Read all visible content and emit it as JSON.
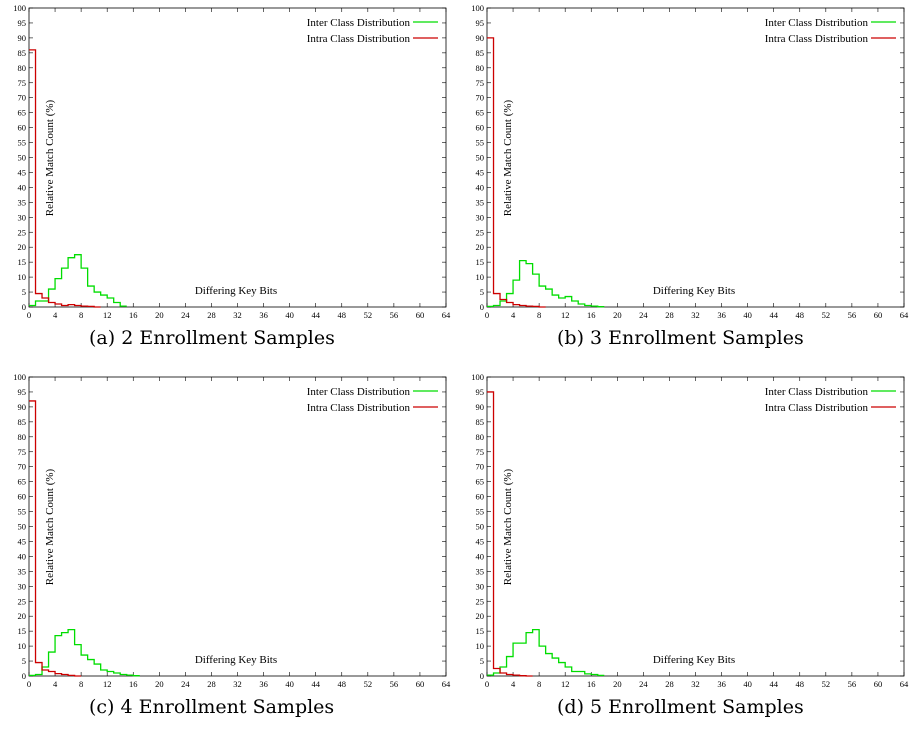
{
  "chart_data": [
    {
      "type": "line",
      "caption": "(a) 2 Enrollment Samples",
      "xlabel": "Differing Key Bits",
      "ylabel": "Relative Match Count (%)",
      "xlim": [
        0,
        64
      ],
      "ylim": [
        0,
        100
      ],
      "xticks": [
        0,
        4,
        8,
        12,
        16,
        20,
        24,
        28,
        32,
        36,
        40,
        44,
        48,
        52,
        56,
        60,
        64
      ],
      "yticks": [
        0,
        5,
        10,
        15,
        20,
        25,
        30,
        35,
        40,
        45,
        50,
        55,
        60,
        65,
        70,
        75,
        80,
        85,
        90,
        95,
        100
      ],
      "legend_position": "top-right",
      "series": [
        {
          "name": "Inter Class Distribution",
          "color": "#00dd00",
          "x": [
            0,
            1,
            2,
            3,
            4,
            5,
            6,
            7,
            8,
            9,
            10,
            11,
            12,
            13,
            14
          ],
          "values": [
            0.5,
            2,
            2,
            6,
            9.5,
            13,
            16.5,
            17.5,
            13,
            7,
            5,
            4,
            3,
            1.5,
            0.3
          ]
        },
        {
          "name": "Intra Class Distribution",
          "color": "#cc0000",
          "x": [
            0,
            1,
            2,
            3,
            4,
            5,
            6,
            7,
            8,
            9,
            10
          ],
          "values": [
            86,
            4.5,
            3,
            1.5,
            1,
            0.5,
            0.8,
            0.5,
            0.3,
            0.2,
            0
          ]
        }
      ]
    },
    {
      "type": "line",
      "caption": "(b) 3 Enrollment Samples",
      "xlabel": "Differing Key Bits",
      "ylabel": "Relative Match Count (%)",
      "xlim": [
        0,
        64
      ],
      "ylim": [
        0,
        100
      ],
      "xticks": [
        0,
        4,
        8,
        12,
        16,
        20,
        24,
        28,
        32,
        36,
        40,
        44,
        48,
        52,
        56,
        60,
        "64"
      ],
      "yticks": [
        0,
        5,
        10,
        15,
        20,
        25,
        30,
        35,
        40,
        45,
        50,
        55,
        60,
        65,
        70,
        75,
        80,
        85,
        90,
        95,
        100
      ],
      "legend_position": "top-right",
      "series": [
        {
          "name": "Inter Class Distribution",
          "color": "#00dd00",
          "x": [
            0,
            1,
            2,
            3,
            4,
            5,
            6,
            7,
            8,
            9,
            10,
            11,
            12,
            13,
            14,
            15,
            16,
            17
          ],
          "values": [
            0.2,
            0.5,
            2,
            4.5,
            9,
            15.5,
            14.5,
            11,
            7,
            6,
            4,
            3,
            3.5,
            2,
            1,
            0.5,
            0.3,
            0.1
          ]
        },
        {
          "name": "Intra Class Distribution",
          "color": "#cc0000",
          "x": [
            0,
            1,
            2,
            3,
            4,
            5,
            6,
            7,
            8
          ],
          "values": [
            90,
            4.5,
            2.5,
            1.5,
            0.8,
            0.5,
            0.3,
            0.2,
            0
          ]
        }
      ]
    },
    {
      "type": "line",
      "caption": "(c) 4 Enrollment Samples",
      "xlabel": "Differing Key Bits",
      "ylabel": "Relative Match Count (%)",
      "xlim": [
        0,
        64
      ],
      "ylim": [
        0,
        100
      ],
      "xticks": [
        0,
        4,
        8,
        12,
        16,
        20,
        24,
        28,
        32,
        36,
        40,
        44,
        48,
        52,
        56,
        60,
        64
      ],
      "yticks": [
        0,
        5,
        10,
        15,
        20,
        25,
        30,
        35,
        40,
        45,
        50,
        55,
        60,
        65,
        70,
        75,
        80,
        85,
        90,
        95,
        100
      ],
      "legend_position": "top-right",
      "series": [
        {
          "name": "Inter Class Distribution",
          "color": "#00dd00",
          "x": [
            0,
            1,
            2,
            3,
            4,
            5,
            6,
            7,
            8,
            9,
            10,
            11,
            12,
            13,
            14,
            15,
            16
          ],
          "values": [
            0.2,
            0.5,
            3,
            8,
            13.5,
            14.5,
            15.5,
            10.5,
            7,
            5.5,
            4,
            2,
            1.5,
            1,
            0.5,
            0.3,
            0.1
          ]
        },
        {
          "name": "Intra Class Distribution",
          "color": "#cc0000",
          "x": [
            0,
            1,
            2,
            3,
            4,
            5,
            6,
            7
          ],
          "values": [
            92,
            4.5,
            2,
            1.5,
            0.8,
            0.5,
            0.2,
            0
          ]
        }
      ]
    },
    {
      "type": "line",
      "caption": "(d) 5 Enrollment Samples",
      "xlabel": "Differing Key Bits",
      "ylabel": "Relative Match Count (%)",
      "xlim": [
        0,
        64
      ],
      "ylim": [
        0,
        100
      ],
      "xticks": [
        0,
        4,
        8,
        12,
        16,
        20,
        24,
        28,
        32,
        36,
        40,
        44,
        48,
        52,
        56,
        60,
        "64"
      ],
      "yticks": [
        0,
        5,
        10,
        15,
        20,
        25,
        30,
        35,
        40,
        45,
        50,
        55,
        60,
        65,
        70,
        75,
        80,
        85,
        90,
        95,
        100
      ],
      "legend_position": "top-right",
      "series": [
        {
          "name": "Inter Class Distribution",
          "color": "#00dd00",
          "x": [
            0,
            1,
            2,
            3,
            4,
            5,
            6,
            7,
            8,
            9,
            10,
            11,
            12,
            13,
            14,
            15,
            16,
            17
          ],
          "values": [
            0.3,
            1,
            3,
            6.5,
            11,
            11,
            14.5,
            15.5,
            10,
            7.5,
            6,
            4.5,
            3,
            1.5,
            1.5,
            0.7,
            0.5,
            0.2
          ]
        },
        {
          "name": "Intra Class Distribution",
          "color": "#cc0000",
          "x": [
            0,
            1,
            2,
            3,
            4,
            5,
            6
          ],
          "values": [
            95,
            2.5,
            1,
            0.5,
            0.3,
            0.1,
            0
          ]
        }
      ]
    }
  ]
}
